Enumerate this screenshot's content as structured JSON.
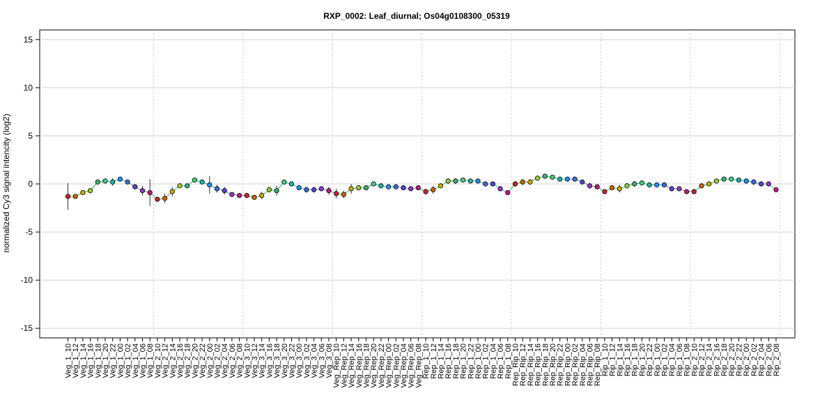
{
  "chart_data": {
    "type": "line",
    "title": "RXP_0002: Leaf_diurnal; Os04g0108300_05319",
    "xlabel": "",
    "ylabel": "normalized Cy3 signal intencity (log2)",
    "ylim": [
      -16,
      16
    ],
    "yticks": [
      15,
      10,
      5,
      0,
      -5,
      -10,
      -15
    ],
    "ytick_labels": [
      "15",
      "10",
      "5",
      "0",
      "-5",
      "-10",
      "-15"
    ],
    "grid": true,
    "group_separators_after_index": [
      11,
      23,
      35,
      47,
      59,
      71,
      83,
      95
    ],
    "categories": [
      "Veg_1_10",
      "Veg_1_12",
      "Veg_1_14",
      "Veg_1_16",
      "Veg_1_18",
      "Veg_1_20",
      "Veg_1_22",
      "Veg_1_00",
      "Veg_1_02",
      "Veg_1_04",
      "Veg_1_06",
      "Veg_1_08",
      "Veg_2_10",
      "Veg_2_12",
      "Veg_2_14",
      "Veg_2_16",
      "Veg_2_18",
      "Veg_2_20",
      "Veg_2_22",
      "Veg_2_00",
      "Veg_2_02",
      "Veg_2_04",
      "Veg_2_06",
      "Veg_2_08",
      "Veg_3_10",
      "Veg_3_12",
      "Veg_3_14",
      "Veg_3_16",
      "Veg_3_18",
      "Veg_3_20",
      "Veg_3_22",
      "Veg_3_00",
      "Veg_3_02",
      "Veg_3_04",
      "Veg_3_06",
      "Veg_3_08",
      "Veg_Rep_10",
      "Veg_Rep_12",
      "Veg_Rep_14",
      "Veg_Rep_16",
      "Veg_Rep_18",
      "Veg_Rep_20",
      "Veg_Rep_22",
      "Veg_Rep_00",
      "Veg_Rep_02",
      "Veg_Rep_04",
      "Veg_Rep_06",
      "Veg_Rep_08",
      "Rep_1_10",
      "Rep_1_12",
      "Rep_1_14",
      "Rep_1_16",
      "Rep_1_18",
      "Rep_1_20",
      "Rep_1_22",
      "Rep_1_00",
      "Rep_1_02",
      "Rep_1_04",
      "Rep_1_06",
      "Rep_1_08",
      "Rep_Rip_10",
      "Rep_Rip_12",
      "Rep_Rip_14",
      "Rep_Rip_16",
      "Rep_Rip_18",
      "Rep_Rip_20",
      "Rep_Rip_22",
      "Rep_Rip_00",
      "Rep_Rip_02",
      "Rep_Rip_04",
      "Rep_Rip_06",
      "Rep_Rip_08",
      "Rip_1_10",
      "Rip_1_12",
      "Rip_1_14",
      "Rip_1_16",
      "Rip_1_18",
      "Rip_1_20",
      "Rip_1_22",
      "Rip_1_00",
      "Rip_1_02",
      "Rip_1_04",
      "Rip_1_06",
      "Rip_1_08",
      "Rip_2_10",
      "Rip_2_12",
      "Rip_2_14",
      "Rip_2_16",
      "Rip_2_18",
      "Rip_2_20",
      "Rip_2_22",
      "Rip_2_00",
      "Rip_2_02",
      "Rip_2_04",
      "Rip_2_06",
      "Rip_2_08"
    ],
    "values": [
      -1.3,
      -1.3,
      -0.9,
      -0.7,
      0.2,
      0.3,
      0.2,
      0.5,
      0.2,
      -0.3,
      -0.7,
      -0.9,
      -1.6,
      -1.5,
      -0.8,
      -0.2,
      -0.2,
      0.4,
      0.2,
      -0.1,
      -0.5,
      -0.7,
      -1.1,
      -1.2,
      -1.2,
      -1.4,
      -1.2,
      -0.6,
      -0.7,
      0.2,
      0.0,
      -0.4,
      -0.6,
      -0.6,
      -0.5,
      -0.7,
      -1.0,
      -1.1,
      -0.5,
      -0.4,
      -0.4,
      0.0,
      -0.2,
      -0.3,
      -0.3,
      -0.4,
      -0.5,
      -0.4,
      -0.8,
      -0.6,
      -0.2,
      0.3,
      0.3,
      0.4,
      0.3,
      0.3,
      0.0,
      0.0,
      -0.5,
      -0.9,
      0.0,
      0.2,
      0.2,
      0.6,
      0.8,
      0.7,
      0.5,
      0.5,
      0.5,
      0.2,
      -0.2,
      -0.3,
      -0.8,
      -0.4,
      -0.5,
      -0.2,
      0.0,
      0.1,
      -0.1,
      -0.1,
      -0.1,
      -0.5,
      -0.5,
      -0.8,
      -0.8,
      -0.2,
      0.0,
      0.3,
      0.5,
      0.5,
      0.4,
      0.3,
      0.2,
      0.0,
      0.0,
      -0.6
    ],
    "errors": [
      1.4,
      0.1,
      0.1,
      0.1,
      0.1,
      0.1,
      0.4,
      0.1,
      0.1,
      0.1,
      0.5,
      1.4,
      0.2,
      0.5,
      0.5,
      0.1,
      0.1,
      0.1,
      0.1,
      0.9,
      0.4,
      0.4,
      0.1,
      0.1,
      0.1,
      0.1,
      0.4,
      0.3,
      0.5,
      0.2,
      0.1,
      0.1,
      0.3,
      0.3,
      0.2,
      0.4,
      0.5,
      0.4,
      0.5,
      0.1,
      0.1,
      0.1,
      0.1,
      0.1,
      0.1,
      0.1,
      0.1,
      0.1,
      0.3,
      0.4,
      0.1,
      0.3,
      0.3,
      0.1,
      0.1,
      0.1,
      0.1,
      0.1,
      0.1,
      0.1,
      0.3,
      0.3,
      0.3,
      0.2,
      0.1,
      0.1,
      0.1,
      0.1,
      0.1,
      0.1,
      0.3,
      0.1,
      0.1,
      0.1,
      0.4,
      0.3,
      0.3,
      0.1,
      0.1,
      0.1,
      0.1,
      0.1,
      0.1,
      0.1,
      0.1,
      0.1,
      0.1,
      0.1,
      0.1,
      0.1,
      0.2,
      0.3,
      0.3,
      0.1,
      0.1,
      0.1
    ],
    "point_colors": [
      "#CD2626",
      "#CD6600",
      "#CDAD00",
      "#9ACD32",
      "#3CB371",
      "#43CD80",
      "#20B2AA",
      "#1E90FF",
      "#4169E1",
      "#5D3FD3",
      "#9932CC",
      "#C71585"
    ],
    "line_color": "#3CB371",
    "grid_color": "#d3d3d3",
    "separator_color": "#c8c8c8"
  }
}
